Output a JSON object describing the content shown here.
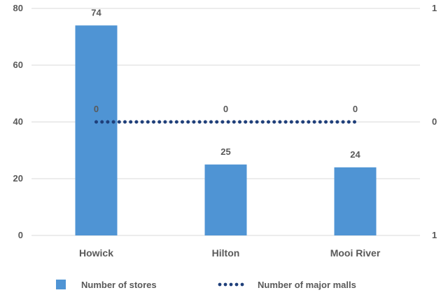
{
  "chart_data": {
    "type": "bar",
    "categories": [
      "Howick",
      "Hilton",
      "Mooi River"
    ],
    "series": [
      {
        "name": "Number of stores",
        "type": "bar",
        "axis": "left",
        "values": [
          74,
          25,
          24
        ],
        "color": "#4f94d4"
      },
      {
        "name": "Number of major malls",
        "type": "line",
        "line_style": "dotted",
        "axis": "right",
        "values": [
          0,
          0,
          0
        ],
        "color": "#1f3f7a"
      }
    ],
    "left_axis": {
      "ylim": [
        0,
        80
      ],
      "ticks": [
        0,
        20,
        40,
        60,
        80
      ]
    },
    "right_axis": {
      "tick_labels": [
        "1",
        "0",
        "1"
      ]
    },
    "grid": true,
    "legend_position": "bottom"
  }
}
